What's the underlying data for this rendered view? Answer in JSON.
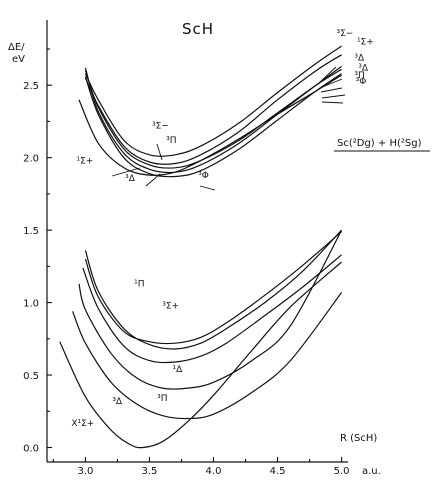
{
  "chart_data": {
    "type": "line",
    "title": "ScH",
    "ylabel_line1": "ΔE/",
    "ylabel_line2": "eV",
    "xlabel": "R (ScH)",
    "xunit": "a.u.",
    "asymptote_label": "Sc(²Dg) + H(²Sg)",
    "xlim": [
      2.7,
      5.05
    ],
    "ylim": [
      -0.1,
      2.95
    ],
    "xticks": [
      3.0,
      3.5,
      4.0,
      4.5,
      5.0
    ],
    "xticklabels": [
      "3.0",
      "3.5",
      "4.0",
      "4.5",
      "5.0"
    ],
    "yticks": [
      0.0,
      0.5,
      1.0,
      1.5,
      2.0,
      2.5
    ],
    "yticklabels": [
      "0.0",
      "0.5",
      "1.0",
      "1.5",
      "2.0",
      "2.5"
    ],
    "grid": false,
    "series": [
      {
        "name": "X¹Σ+",
        "x": [
          2.8,
          3.0,
          3.2,
          3.35,
          3.45,
          3.6,
          3.8,
          4.0,
          4.3,
          4.6,
          5.0
        ],
        "y": [
          0.73,
          0.35,
          0.12,
          0.02,
          0.0,
          0.04,
          0.18,
          0.36,
          0.67,
          0.97,
          1.28
        ]
      },
      {
        "name": "³Δ",
        "x": [
          2.9,
          3.0,
          3.2,
          3.4,
          3.6,
          3.8,
          4.0,
          4.3,
          4.6,
          5.0
        ],
        "y": [
          0.94,
          0.72,
          0.45,
          0.3,
          0.22,
          0.2,
          0.23,
          0.38,
          0.6,
          1.07
        ]
      },
      {
        "name": "³Π",
        "x": [
          2.95,
          3.0,
          3.2,
          3.4,
          3.6,
          3.8,
          4.0,
          4.3,
          4.6,
          5.0
        ],
        "y": [
          1.13,
          0.95,
          0.65,
          0.48,
          0.41,
          0.41,
          0.45,
          0.6,
          0.84,
          1.5
        ]
      },
      {
        "name": "¹Δ",
        "x": [
          2.98,
          3.1,
          3.3,
          3.5,
          3.7,
          3.9,
          4.1,
          4.4,
          4.7,
          5.0
        ],
        "y": [
          1.24,
          0.96,
          0.7,
          0.6,
          0.59,
          0.63,
          0.72,
          0.91,
          1.11,
          1.33
        ]
      },
      {
        "name": "¹Π",
        "x": [
          3.0,
          3.1,
          3.3,
          3.5,
          3.7,
          3.9,
          4.1,
          4.4,
          4.7,
          5.0
        ],
        "y": [
          1.36,
          1.08,
          0.82,
          0.71,
          0.68,
          0.72,
          0.82,
          1.0,
          1.22,
          1.5
        ]
      },
      {
        "name": "³Σ+",
        "x": [
          3.0,
          3.1,
          3.3,
          3.5,
          3.7,
          3.9,
          4.1,
          4.4,
          4.7,
          5.0
        ],
        "y": [
          1.3,
          1.04,
          0.8,
          0.73,
          0.72,
          0.76,
          0.86,
          1.05,
          1.26,
          1.49
        ]
      },
      {
        "name": "¹Σ+",
        "x": [
          2.95,
          3.1,
          3.3,
          3.5,
          3.7,
          3.9,
          4.2,
          4.5,
          4.8,
          5.0
        ],
        "y": [
          2.4,
          2.1,
          1.93,
          1.88,
          1.9,
          1.98,
          2.13,
          2.3,
          2.46,
          2.57
        ]
      },
      {
        "name": "³Δ",
        "x": [
          3.0,
          3.1,
          3.3,
          3.5,
          3.7,
          3.9,
          4.2,
          4.5,
          4.8,
          5.0
        ],
        "y": [
          2.62,
          2.32,
          2.03,
          1.92,
          1.9,
          1.95,
          2.1,
          2.3,
          2.5,
          2.63
        ]
      },
      {
        "name": "³Π",
        "x": [
          3.0,
          3.1,
          3.3,
          3.5,
          3.7,
          3.9,
          4.2,
          4.5,
          4.8,
          5.0
        ],
        "y": [
          2.6,
          2.35,
          2.06,
          1.95,
          1.93,
          1.98,
          2.12,
          2.31,
          2.5,
          2.61
        ]
      },
      {
        "name": "³Σ-",
        "x": [
          3.0,
          3.1,
          3.3,
          3.5,
          3.7,
          3.9,
          4.2,
          4.5,
          4.8,
          5.0
        ],
        "y": [
          2.58,
          2.4,
          2.12,
          2.02,
          2.02,
          2.08,
          2.24,
          2.45,
          2.65,
          2.77
        ]
      },
      {
        "name": "¹Σ+",
        "x": [
          3.0,
          3.1,
          3.3,
          3.5,
          3.7,
          3.9,
          4.2,
          4.5,
          4.8,
          5.0
        ],
        "y": [
          2.55,
          2.36,
          2.08,
          1.97,
          1.96,
          2.02,
          2.18,
          2.4,
          2.6,
          2.71
        ]
      },
      {
        "name": "³Φ",
        "x": [
          3.0,
          3.1,
          3.3,
          3.5,
          3.7,
          3.9,
          4.2,
          4.5,
          4.8,
          5.0
        ],
        "y": [
          2.56,
          2.3,
          2.0,
          1.89,
          1.87,
          1.91,
          2.06,
          2.26,
          2.46,
          2.58
        ]
      }
    ],
    "state_labels": [
      {
        "text": "³Σ−",
        "x": 4.96,
        "y": 2.84
      },
      {
        "text": "¹Σ+",
        "x": 5.12,
        "y": 2.78
      },
      {
        "text": "³Δ",
        "x": 5.1,
        "y": 2.67
      },
      {
        "text": "³Δ",
        "x": 5.13,
        "y": 2.6
      },
      {
        "text": "³Π",
        "x": 5.1,
        "y": 2.55
      },
      {
        "text": "³Φ",
        "x": 5.11,
        "y": 2.51
      },
      {
        "text": "³Σ−",
        "x": 3.52,
        "y": 2.2
      },
      {
        "text": "³Π",
        "x": 3.63,
        "y": 2.1
      },
      {
        "text": "¹Σ+",
        "x": 2.93,
        "y": 1.96
      },
      {
        "text": "³Δ",
        "x": 3.31,
        "y": 1.84
      },
      {
        "text": "³Φ",
        "x": 3.88,
        "y": 1.86
      },
      {
        "text": "¹Π",
        "x": 3.38,
        "y": 1.11
      },
      {
        "text": "³Σ+",
        "x": 3.6,
        "y": 0.96
      },
      {
        "text": "¹Δ",
        "x": 3.68,
        "y": 0.52
      },
      {
        "text": "³Π",
        "x": 3.56,
        "y": 0.32
      },
      {
        "text": "³Δ",
        "x": 3.21,
        "y": 0.3
      },
      {
        "text": "X¹Σ+",
        "x": 2.89,
        "y": 0.15
      }
    ]
  }
}
